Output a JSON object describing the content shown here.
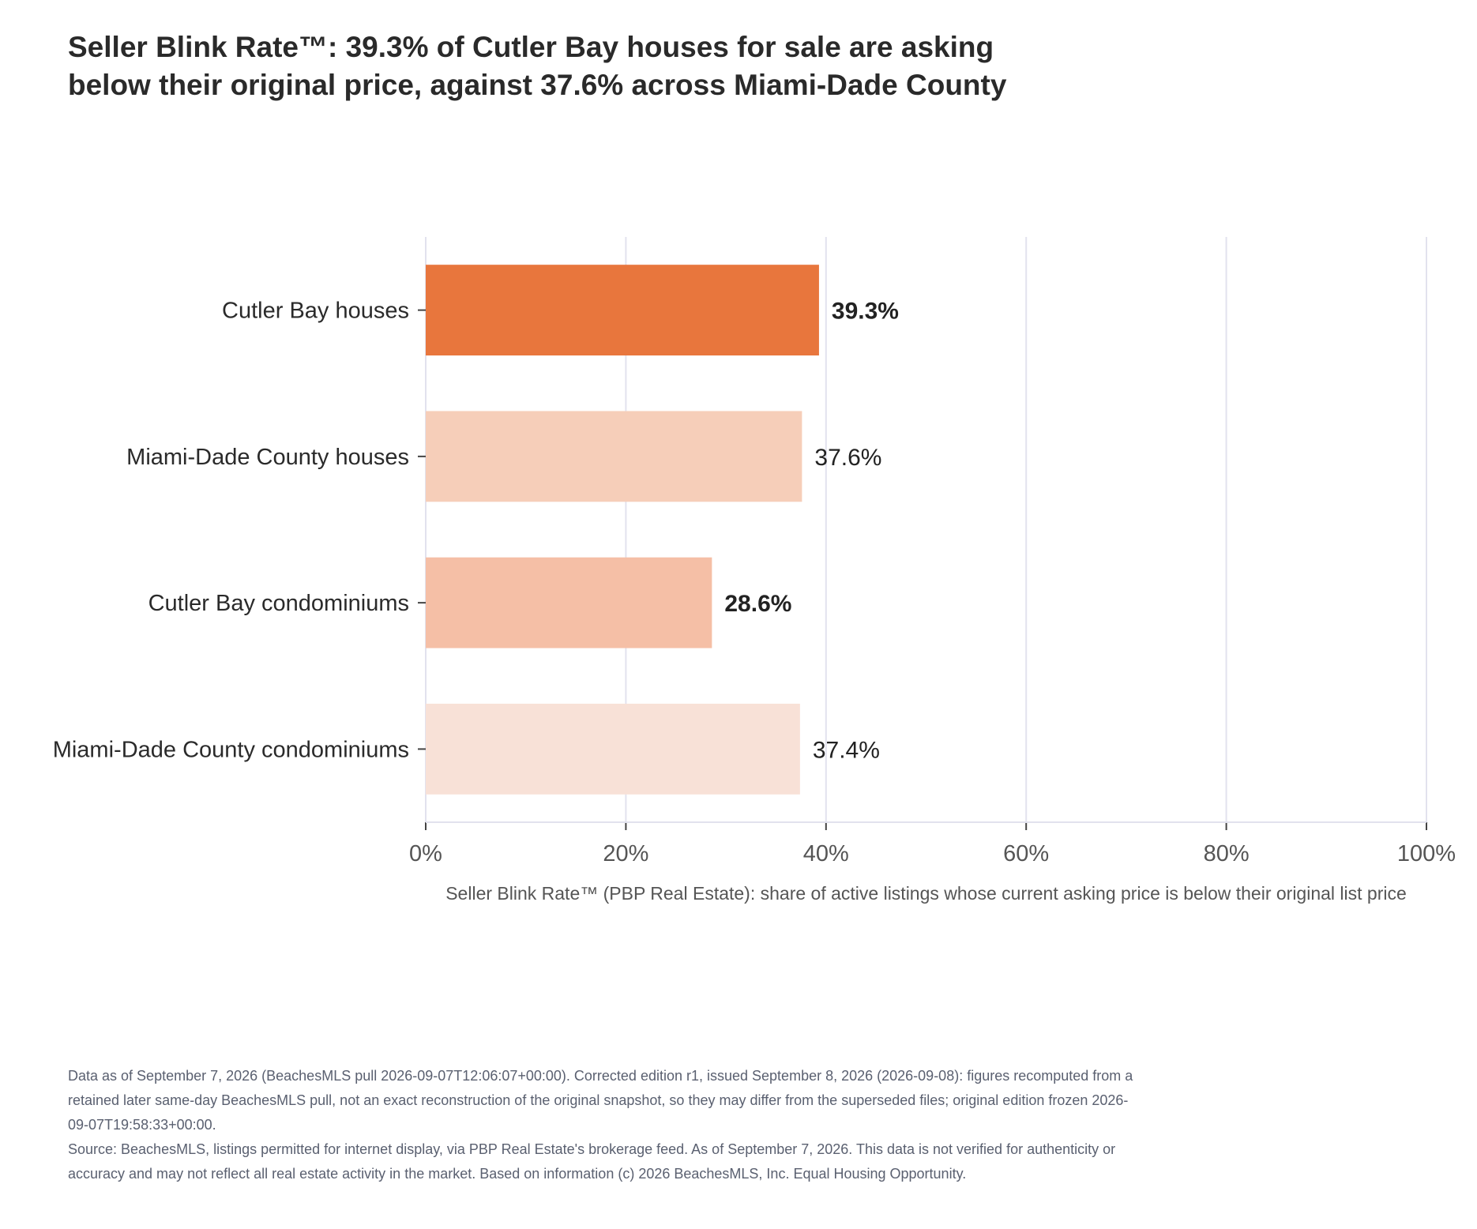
{
  "title_lines": [
    "Seller Blink Rate™: 39.3% of Cutler Bay houses for sale are asking",
    "below their original price, against 37.6% across Miami-Dade County"
  ],
  "chart_data": {
    "type": "bar",
    "orientation": "horizontal",
    "categories": [
      "Cutler Bay houses",
      "Miami-Dade County houses",
      "Cutler Bay condominiums",
      "Miami-Dade County condominiums"
    ],
    "values": [
      39.3,
      37.6,
      28.6,
      37.4
    ],
    "value_labels": [
      "39.3%",
      "37.6%",
      "28.6%",
      "37.4%"
    ],
    "label_bold": [
      true,
      false,
      true,
      false
    ],
    "bar_colors": [
      "#e8763d",
      "#f6ceb9",
      "#f5bfa6",
      "#f8e1d7"
    ],
    "xlim": [
      0,
      100
    ],
    "xticks": [
      0,
      20,
      40,
      60,
      80,
      100
    ],
    "xtick_labels": [
      "0%",
      "20%",
      "40%",
      "60%",
      "80%",
      "100%"
    ],
    "xlabel": "Seller Blink Rate™ (PBP Real Estate): share of active listings whose current asking price is below their original list price",
    "ylabel": "",
    "grid": true,
    "gridline_color": "#e2e2ee"
  },
  "notes": [
    "Data as of September 7, 2026 (BeachesMLS pull 2026-09-07T12:06:07+00:00). Corrected edition r1, issued September 8, 2026 (2026-09-08): figures recomputed from a retained later same-day BeachesMLS pull, not an exact reconstruction of the original snapshot, so they may differ from the superseded files; original edition frozen 2026-09-07T19:58:33+00:00.",
    "Source: BeachesMLS, listings permitted for internet display, via PBP Real Estate's brokerage feed. As of September 7, 2026. This data is not verified for authenticity or accuracy and may not reflect all real estate activity in the market. Based on information (c) 2026 BeachesMLS, Inc. Equal Housing Opportunity."
  ]
}
